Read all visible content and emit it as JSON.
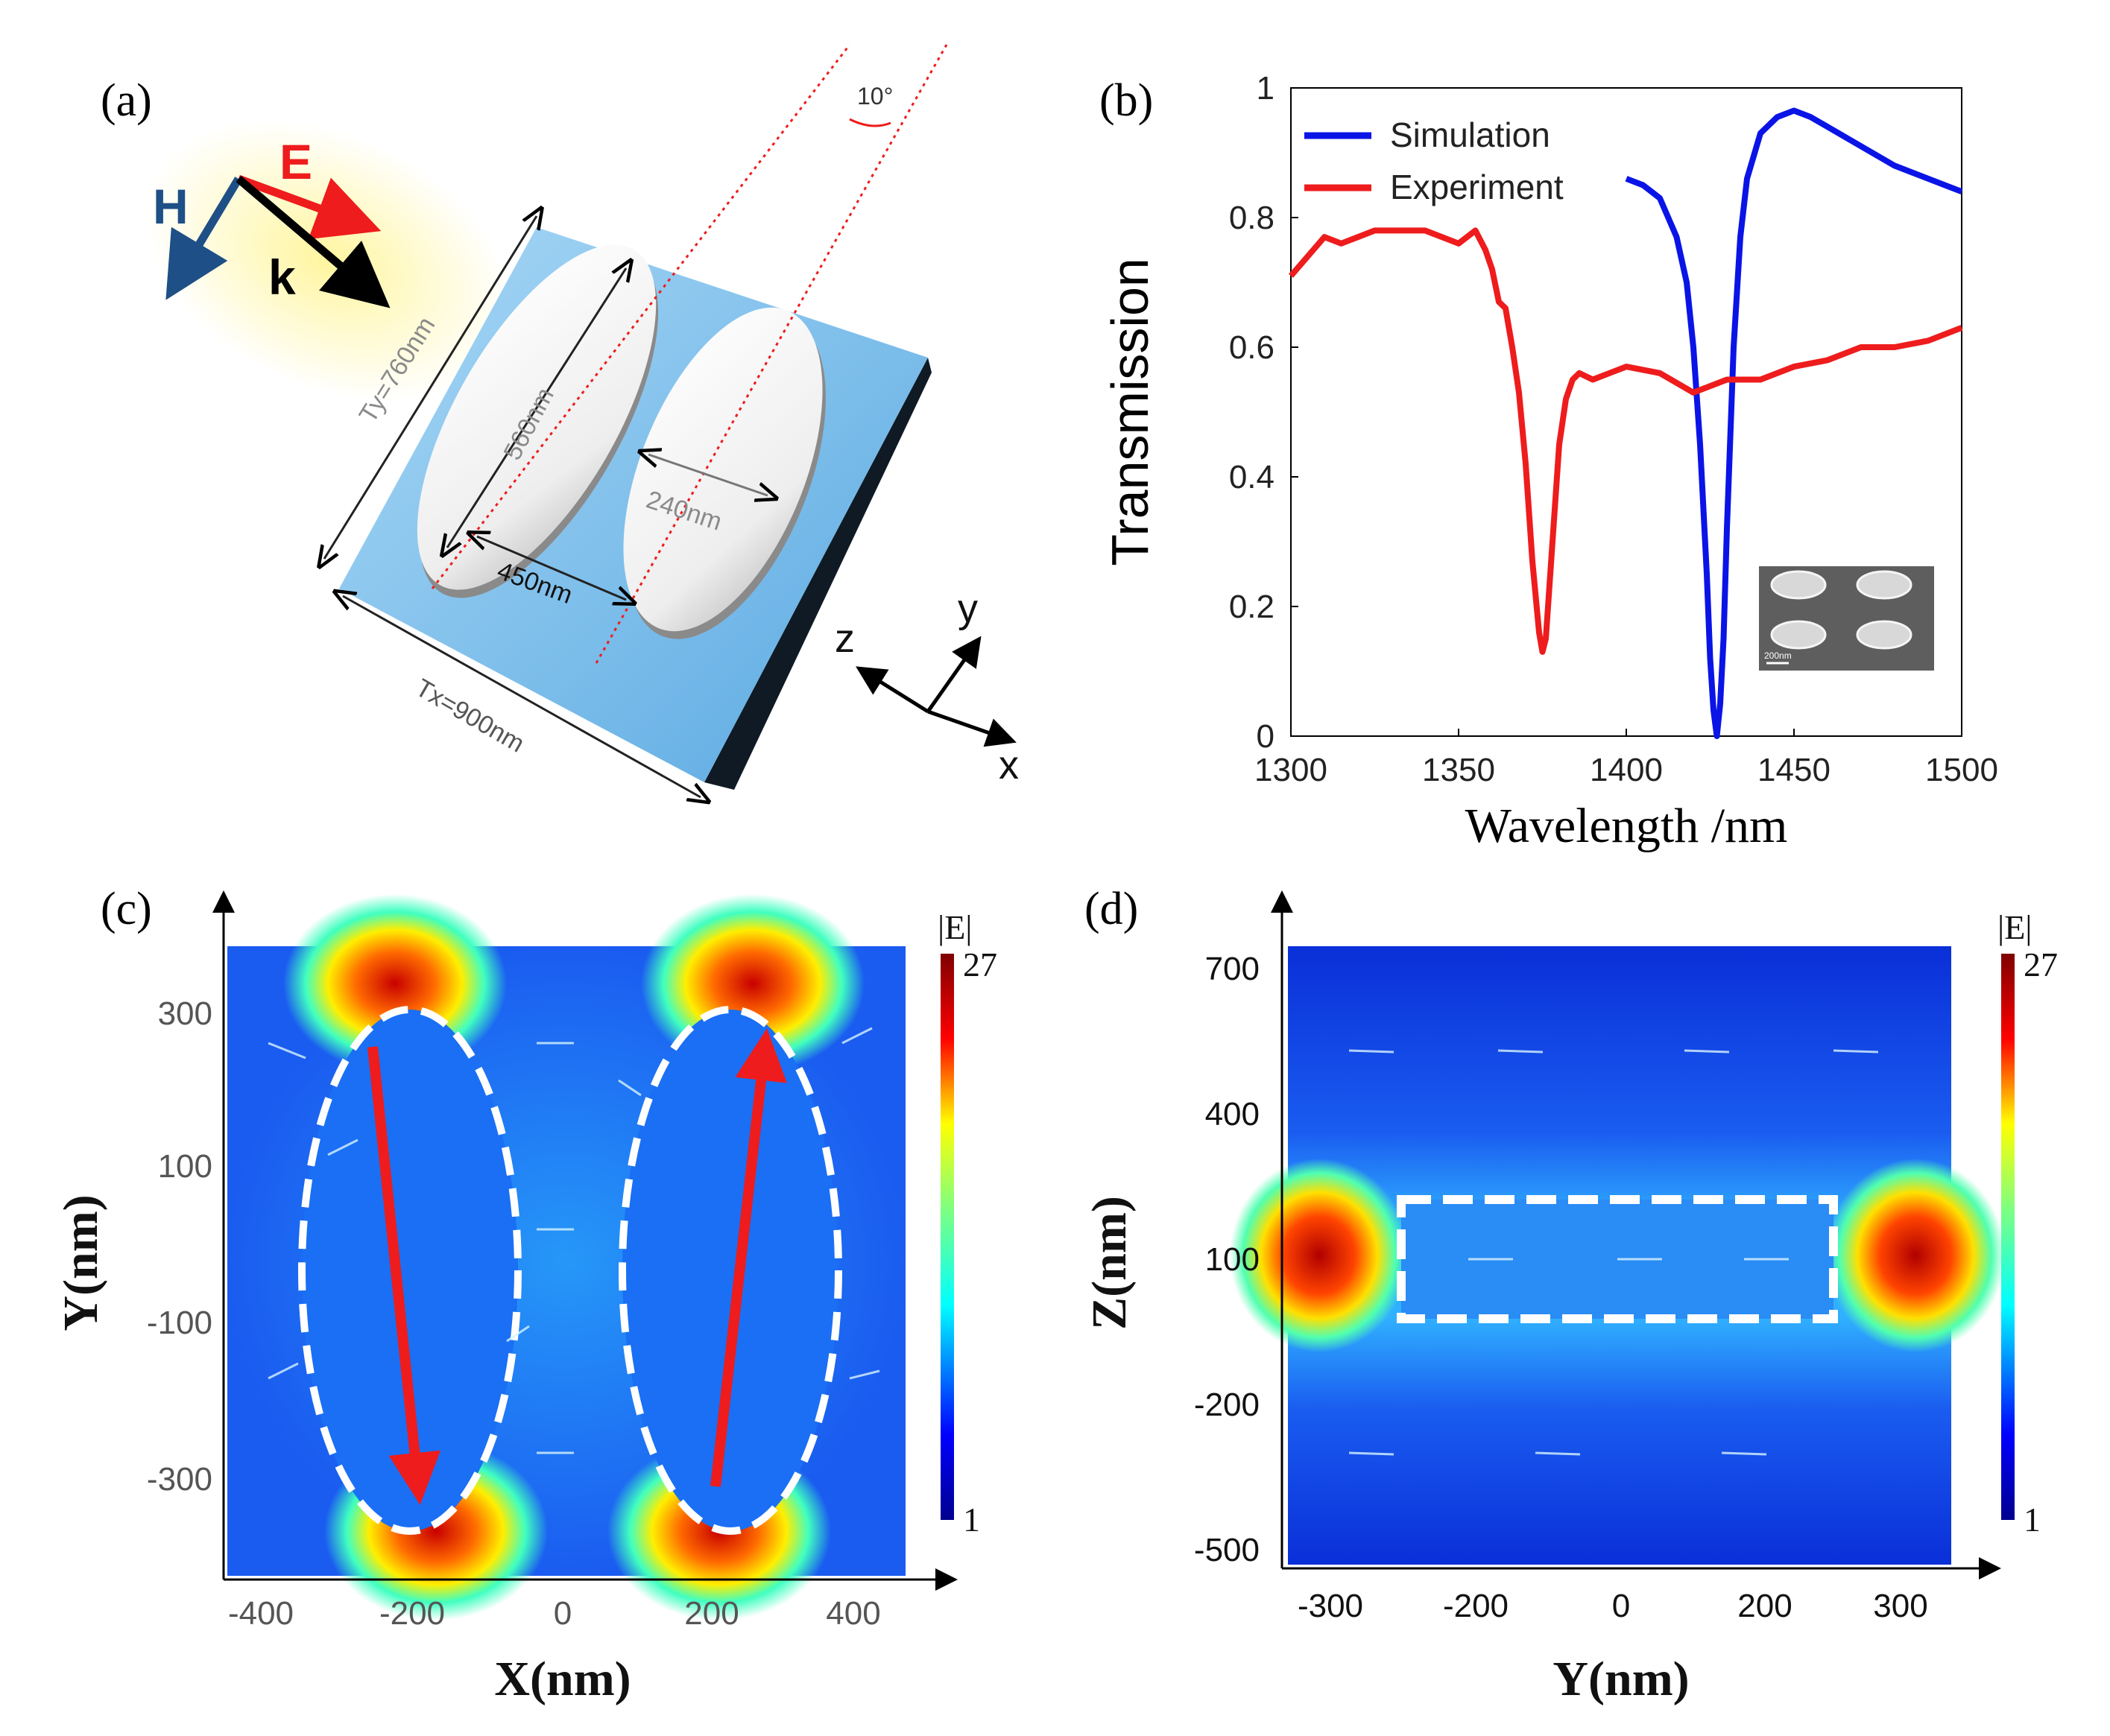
{
  "figure": {
    "panel_a": {
      "label": "(a)",
      "E": "E",
      "H": "H",
      "k": "k",
      "angle": "10°",
      "dim_ty": "Ty=760nm",
      "dim_tx": "Tx=900nm",
      "dim_long": "560nm",
      "dim_short": "240nm",
      "dim_gap": "450nm",
      "axis_x": "x",
      "axis_y": "y",
      "axis_z": "z",
      "colors": {
        "E": "#ee1c1c",
        "H": "#1e4f86",
        "k": "#000000",
        "substrate": "#7fc3ec"
      }
    },
    "panel_b": {
      "label": "(b)",
      "inset_scale": "200nm"
    },
    "panel_c": {
      "label": "(c)",
      "colorbar_title": "|E|",
      "colorbar_max": "27",
      "colorbar_min": "1",
      "xlabel": "X(nm)",
      "ylabel": "Y(nm)",
      "xticks": [
        "-400",
        "-200",
        "0",
        "200",
        "400"
      ],
      "yticks": [
        "300",
        "100",
        "-100",
        "-300"
      ]
    },
    "panel_d": {
      "label": "(d)",
      "colorbar_title": "|E|",
      "colorbar_max": "27",
      "colorbar_min": "1",
      "xlabel": "Y(nm)",
      "ylabel": "Z(nm)",
      "xticks": [
        "-300",
        "-200",
        "0",
        "200",
        "300"
      ],
      "yticks": [
        "700",
        "400",
        "100",
        "-200",
        "-500"
      ]
    }
  },
  "chart_data": {
    "type": "line",
    "title": "",
    "xlabel": "Wavelength /nm",
    "ylabel": "Transmission",
    "xlim": [
      1300,
      1500
    ],
    "ylim": [
      0,
      1
    ],
    "xticks": [
      "1300",
      "1350",
      "1400",
      "1450",
      "1500"
    ],
    "yticks": [
      "0",
      "0.2",
      "0.4",
      "0.6",
      "0.8",
      "1"
    ],
    "legend_position": "top-left",
    "series": [
      {
        "name": "Simulation",
        "color": "#0a14e6",
        "x": [
          1400,
          1405,
          1410,
          1415,
          1418,
          1420,
          1422,
          1424,
          1425,
          1426,
          1427,
          1428,
          1429,
          1430,
          1432,
          1434,
          1436,
          1440,
          1445,
          1450,
          1455,
          1460,
          1470,
          1480,
          1490,
          1500
        ],
        "y": [
          0.86,
          0.85,
          0.83,
          0.77,
          0.7,
          0.6,
          0.45,
          0.25,
          0.12,
          0.04,
          0.0,
          0.05,
          0.15,
          0.32,
          0.6,
          0.77,
          0.86,
          0.93,
          0.955,
          0.965,
          0.955,
          0.94,
          0.91,
          0.88,
          0.86,
          0.84
        ]
      },
      {
        "name": "Experiment",
        "color": "#ee1c1c",
        "x": [
          1300,
          1305,
          1310,
          1315,
          1320,
          1325,
          1330,
          1340,
          1350,
          1355,
          1358,
          1360,
          1362,
          1364,
          1366,
          1368,
          1370,
          1372,
          1374,
          1375,
          1376,
          1378,
          1380,
          1382,
          1384,
          1386,
          1390,
          1395,
          1400,
          1410,
          1420,
          1430,
          1440,
          1450,
          1460,
          1470,
          1480,
          1490,
          1500
        ],
        "y": [
          0.71,
          0.74,
          0.77,
          0.76,
          0.77,
          0.78,
          0.78,
          0.78,
          0.76,
          0.78,
          0.75,
          0.72,
          0.67,
          0.66,
          0.6,
          0.53,
          0.42,
          0.27,
          0.16,
          0.13,
          0.15,
          0.3,
          0.45,
          0.52,
          0.55,
          0.56,
          0.55,
          0.56,
          0.57,
          0.56,
          0.53,
          0.55,
          0.55,
          0.57,
          0.58,
          0.6,
          0.6,
          0.61,
          0.63
        ]
      }
    ]
  }
}
